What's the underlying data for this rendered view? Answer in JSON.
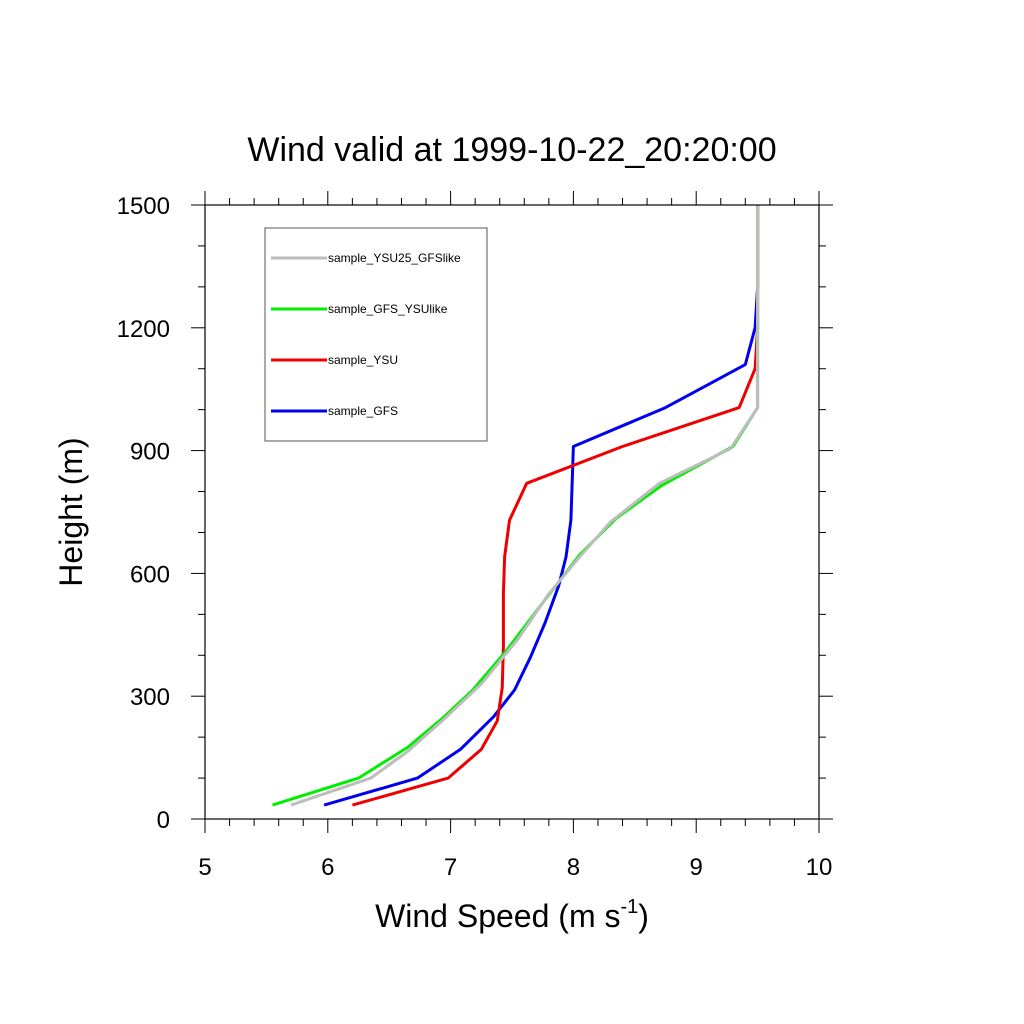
{
  "chart_data": {
    "type": "line",
    "title": "Wind valid at 1999-10-22_20:20:00",
    "xlabel": "Wind Speed (m s",
    "xlabel_superscript": "-1",
    "xlabel_suffix": ")",
    "ylabel": "Height (m)",
    "xlim": [
      5,
      10
    ],
    "ylim": [
      0,
      1500
    ],
    "xticks": [
      "5",
      "6",
      "7",
      "8",
      "9",
      "10"
    ],
    "yticks": [
      "0",
      "300",
      "600",
      "900",
      "1200",
      "1500"
    ],
    "grid": false,
    "legend_position": "top-left",
    "series": [
      {
        "name": "sample_YSU25_GFSlike",
        "color": "#bdbdbd",
        "points": [
          [
            5.7,
            34
          ],
          [
            6.35,
            100
          ],
          [
            6.65,
            165
          ],
          [
            6.95,
            245
          ],
          [
            7.25,
            330
          ],
          [
            7.55,
            440
          ],
          [
            7.8,
            550
          ],
          [
            8.05,
            640
          ],
          [
            8.3,
            725
          ],
          [
            8.7,
            820
          ],
          [
            9.28,
            905
          ],
          [
            9.5,
            1005
          ],
          [
            9.5,
            1100
          ],
          [
            9.5,
            1200
          ],
          [
            9.5,
            1500
          ]
        ]
      },
      {
        "name": "sample_GFS_YSUlike",
        "color": "#00ee00",
        "points": [
          [
            5.55,
            34
          ],
          [
            6.25,
            100
          ],
          [
            6.65,
            175
          ],
          [
            6.93,
            245
          ],
          [
            7.18,
            315
          ],
          [
            7.45,
            410
          ],
          [
            7.78,
            540
          ],
          [
            8.05,
            645
          ],
          [
            8.35,
            735
          ],
          [
            8.72,
            815
          ],
          [
            9.3,
            910
          ],
          [
            9.5,
            1005
          ],
          [
            9.5,
            1100
          ],
          [
            9.5,
            1200
          ],
          [
            9.5,
            1500
          ]
        ]
      },
      {
        "name": "sample_YSU",
        "color": "#ee0000",
        "points": [
          [
            6.2,
            34
          ],
          [
            6.98,
            100
          ],
          [
            7.25,
            170
          ],
          [
            7.38,
            240
          ],
          [
            7.42,
            320
          ],
          [
            7.43,
            420
          ],
          [
            7.43,
            550
          ],
          [
            7.44,
            640
          ],
          [
            7.48,
            730
          ],
          [
            7.62,
            820
          ],
          [
            8.4,
            910
          ],
          [
            9.35,
            1005
          ],
          [
            9.48,
            1100
          ],
          [
            9.5,
            1200
          ],
          [
            9.5,
            1500
          ]
        ]
      },
      {
        "name": "sample_GFS",
        "color": "#0000ee",
        "points": [
          [
            5.97,
            34
          ],
          [
            6.73,
            100
          ],
          [
            7.08,
            170
          ],
          [
            7.35,
            250
          ],
          [
            7.52,
            315
          ],
          [
            7.65,
            395
          ],
          [
            7.77,
            480
          ],
          [
            7.88,
            570
          ],
          [
            7.94,
            640
          ],
          [
            7.98,
            730
          ],
          [
            8.0,
            910
          ],
          [
            8.75,
            1005
          ],
          [
            9.4,
            1110
          ],
          [
            9.48,
            1200
          ],
          [
            9.5,
            1300
          ],
          [
            9.5,
            1500
          ]
        ]
      }
    ]
  }
}
